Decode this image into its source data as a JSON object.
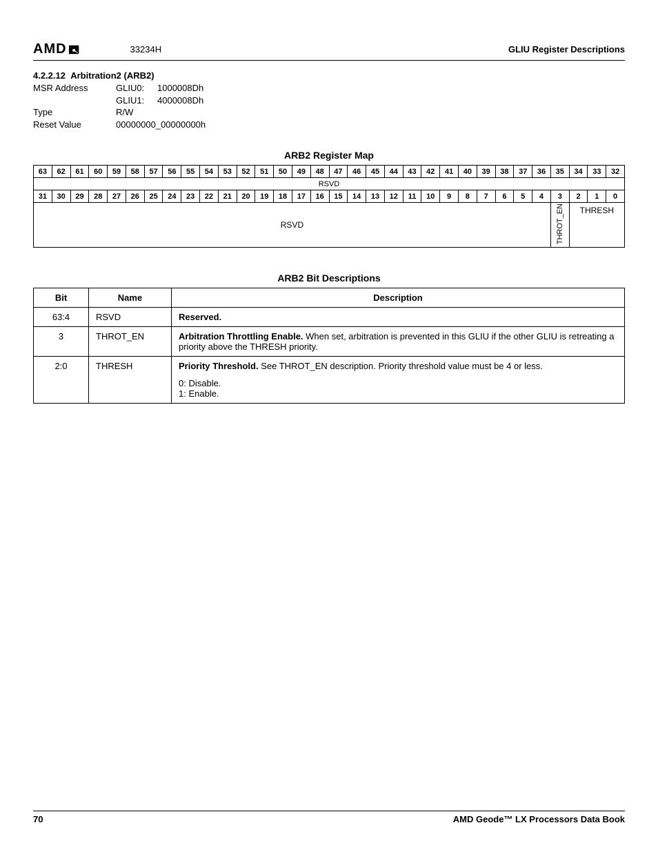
{
  "header": {
    "logo_text": "AMD",
    "doc_code": "33234H",
    "section_label": "GLIU Register Descriptions"
  },
  "section": {
    "number": "4.2.2.12",
    "title": "Arbitration2 (ARB2)",
    "msr_label": "MSR Address",
    "gliu0_label": "GLIU0:",
    "gliu0_value": "1000008Dh",
    "gliu1_label": "GLIU1:",
    "gliu1_value": "4000008Dh",
    "type_label": "Type",
    "type_value": "R/W",
    "reset_label": "Reset Value",
    "reset_value": "00000000_00000000h"
  },
  "regmap": {
    "title": "ARB2 Register Map",
    "bits_high": [
      "63",
      "62",
      "61",
      "60",
      "59",
      "58",
      "57",
      "56",
      "55",
      "54",
      "53",
      "52",
      "51",
      "50",
      "49",
      "48",
      "47",
      "46",
      "45",
      "44",
      "43",
      "42",
      "41",
      "40",
      "39",
      "38",
      "37",
      "36",
      "35",
      "34",
      "33",
      "32"
    ],
    "row_high_field": "RSVD",
    "bits_low": [
      "31",
      "30",
      "29",
      "28",
      "27",
      "26",
      "25",
      "24",
      "23",
      "22",
      "21",
      "20",
      "19",
      "18",
      "17",
      "16",
      "15",
      "14",
      "13",
      "12",
      "11",
      "10",
      "9",
      "8",
      "7",
      "6",
      "5",
      "4",
      "3",
      "2",
      "1",
      "0"
    ],
    "row_low_rsvd": "RSVD",
    "row_low_throt": "THROT_EN",
    "row_low_thresh": "THRESH"
  },
  "desc": {
    "title": "ARB2 Bit Descriptions",
    "col_bit": "Bit",
    "col_name": "Name",
    "col_desc": "Description",
    "rows": [
      {
        "bit": "63:4",
        "name": "RSVD",
        "desc_bold": "Reserved.",
        "desc_rest": ""
      },
      {
        "bit": "3",
        "name": "THROT_EN",
        "desc_bold": "Arbitration Throttling Enable.",
        "desc_rest": " When set, arbitration is prevented in this GLIU if the other GLIU is retreating a priority above the THRESH priority."
      },
      {
        "bit": "2:0",
        "name": "THRESH",
        "desc_bold": "Priority Threshold.",
        "desc_rest": " See THROT_EN description. Priority threshold value must be 4 or less.",
        "extra1": "0: Disable.",
        "extra2": "1: Enable."
      }
    ]
  },
  "footer": {
    "page": "70",
    "book": "AMD Geode™ LX Processors Data Book"
  }
}
